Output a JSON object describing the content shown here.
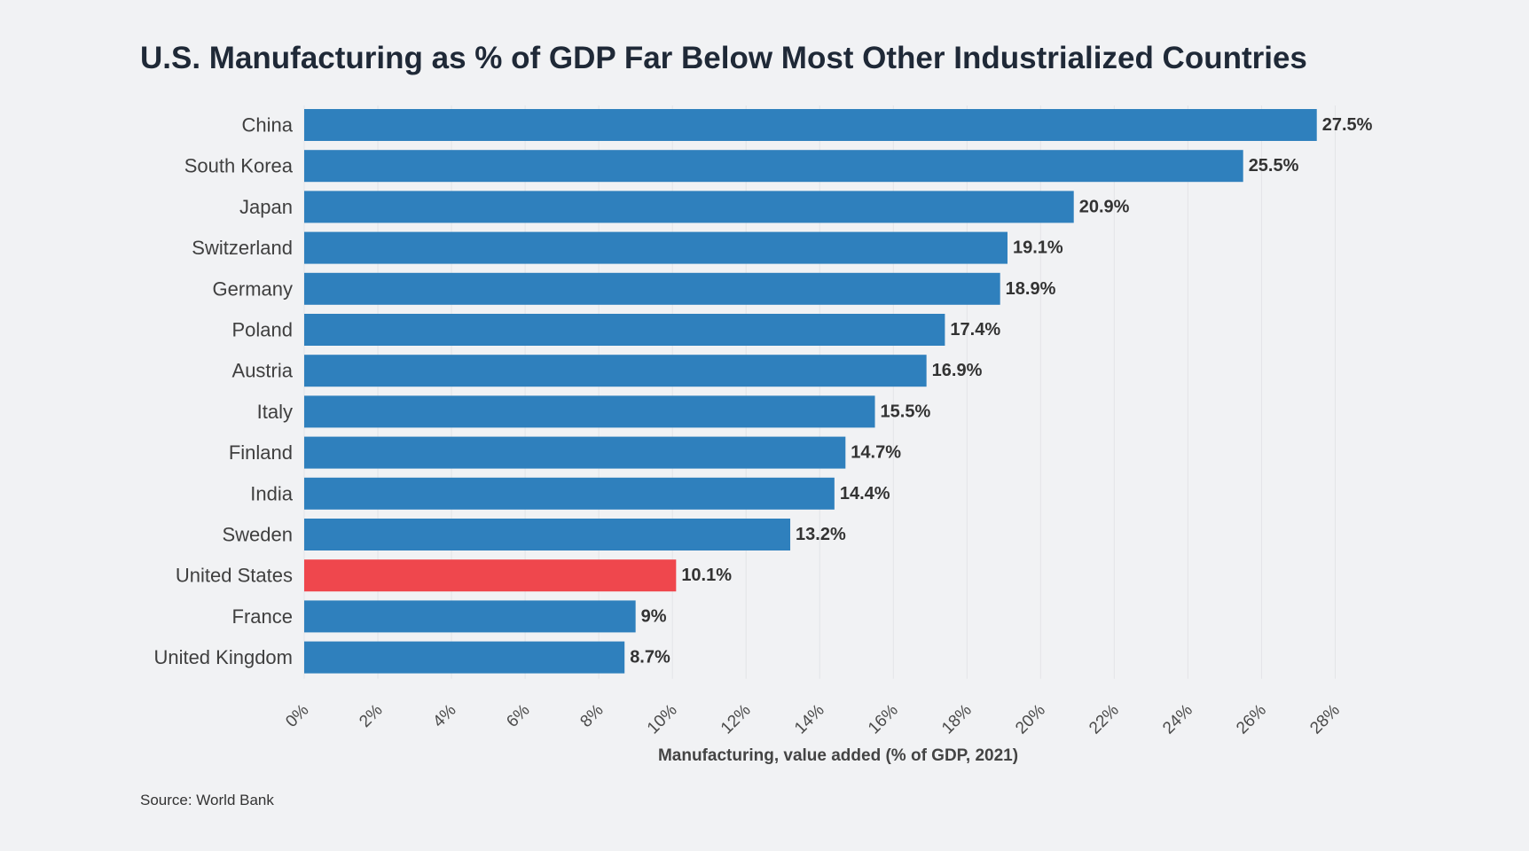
{
  "chart_data": {
    "type": "bar",
    "orientation": "horizontal",
    "title": "U.S. Manufacturing as % of GDP Far Below Most Other Industrialized Countries",
    "xlabel": "Manufacturing, value added (% of GDP, 2021)",
    "ylabel": "",
    "source": "Source: World Bank",
    "categories": [
      "China",
      "South Korea",
      "Japan",
      "Switzerland",
      "Germany",
      "Poland",
      "Austria",
      "Italy",
      "Finland",
      "India",
      "Sweden",
      "United States",
      "France",
      "United Kingdom"
    ],
    "values": [
      27.5,
      25.5,
      20.9,
      19.1,
      18.9,
      17.4,
      16.9,
      15.5,
      14.7,
      14.4,
      13.2,
      10.1,
      9,
      8.7
    ],
    "value_labels": [
      "27.5%",
      "25.5%",
      "20.9%",
      "19.1%",
      "18.9%",
      "17.4%",
      "16.9%",
      "15.5%",
      "14.7%",
      "14.4%",
      "13.2%",
      "10.1%",
      "9%",
      "8.7%"
    ],
    "highlight_category": "United States",
    "xlim": [
      0,
      29
    ],
    "ticks": [
      0,
      2,
      4,
      6,
      8,
      10,
      12,
      14,
      16,
      18,
      20,
      22,
      24,
      26,
      28
    ],
    "tick_labels": [
      "0%",
      "2%",
      "4%",
      "6%",
      "8%",
      "10%",
      "12%",
      "14%",
      "16%",
      "18%",
      "20%",
      "22%",
      "24%",
      "26%",
      "28%"
    ],
    "grid": true,
    "legend": "none",
    "colors": {
      "bar": "#2f80bd",
      "highlight": "#ef474d",
      "background": "#f1f2f4"
    }
  }
}
